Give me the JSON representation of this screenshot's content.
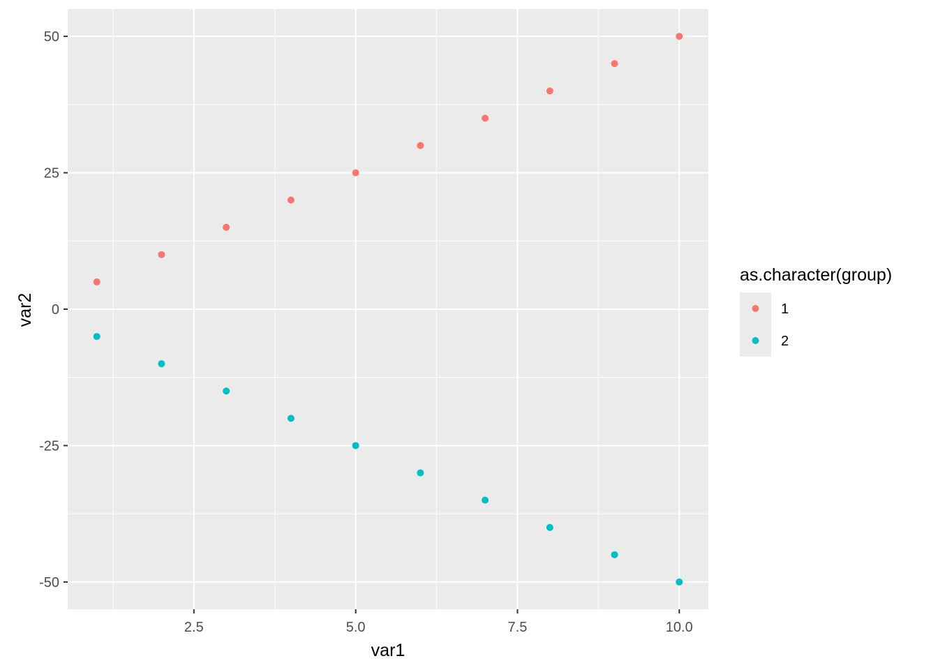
{
  "chart_data": {
    "type": "scatter",
    "title": "",
    "xlabel": "var1",
    "ylabel": "var2",
    "xlim": [
      0.55,
      10.45
    ],
    "ylim": [
      -55,
      55
    ],
    "x_ticks": [
      2.5,
      5.0,
      7.5,
      10.0
    ],
    "x_tick_labels": [
      "2.5",
      "5.0",
      "7.5",
      "10.0"
    ],
    "y_ticks": [
      -50,
      -25,
      0,
      25,
      50
    ],
    "y_tick_labels": [
      "-50",
      "-25",
      "0",
      "25",
      "50"
    ],
    "grid": true,
    "legend": {
      "title": "as.character(group)",
      "placement": "right"
    },
    "series": [
      {
        "name": "1",
        "color": "#F8766D",
        "x": [
          1,
          2,
          3,
          4,
          5,
          6,
          7,
          8,
          9,
          10
        ],
        "y": [
          5,
          10,
          15,
          20,
          25,
          30,
          35,
          40,
          45,
          50
        ]
      },
      {
        "name": "2",
        "color": "#00BFC4",
        "x": [
          1,
          2,
          3,
          4,
          5,
          6,
          7,
          8,
          9,
          10
        ],
        "y": [
          -5,
          -10,
          -15,
          -20,
          -25,
          -30,
          -35,
          -40,
          -45,
          -50
        ]
      }
    ]
  },
  "colors": {
    "panel_background": "#EBEBEB",
    "grid_major": "#FFFFFF",
    "legend_key_background": "#EBEBEB"
  }
}
